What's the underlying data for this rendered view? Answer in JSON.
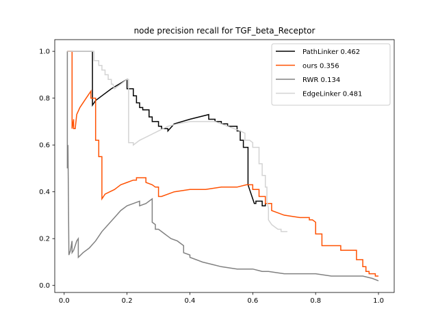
{
  "chart_data": {
    "type": "line",
    "title": "node precision recall for TGF_beta_Receptor",
    "xlabel": "",
    "ylabel": "",
    "xlim": [
      -0.03,
      1.05
    ],
    "ylim": [
      -0.03,
      1.05
    ],
    "xticks": [
      0.0,
      0.2,
      0.4,
      0.6,
      0.8,
      1.0
    ],
    "xtick_labels": [
      "0.0",
      "0.2",
      "0.4",
      "0.6",
      "0.8",
      "1.0"
    ],
    "yticks": [
      0.0,
      0.2,
      0.4,
      0.6,
      0.8,
      1.0
    ],
    "ytick_labels": [
      "0.0",
      "0.2",
      "0.4",
      "0.6",
      "0.8",
      "1.0"
    ],
    "grid": false,
    "legend_position": "top-right",
    "series": [
      {
        "name": "PathLinker 0.462",
        "color": "#000000",
        "points": [
          [
            0.01,
            1.0
          ],
          [
            0.09,
            1.0
          ],
          [
            0.09,
            0.77
          ],
          [
            0.1,
            0.79
          ],
          [
            0.12,
            0.81
          ],
          [
            0.15,
            0.84
          ],
          [
            0.2,
            0.88
          ],
          [
            0.2,
            0.84
          ],
          [
            0.22,
            0.84
          ],
          [
            0.22,
            0.81
          ],
          [
            0.23,
            0.81
          ],
          [
            0.23,
            0.78
          ],
          [
            0.24,
            0.78
          ],
          [
            0.24,
            0.76
          ],
          [
            0.25,
            0.76
          ],
          [
            0.25,
            0.75
          ],
          [
            0.27,
            0.75
          ],
          [
            0.27,
            0.72
          ],
          [
            0.28,
            0.72
          ],
          [
            0.28,
            0.7
          ],
          [
            0.3,
            0.7
          ],
          [
            0.3,
            0.68
          ],
          [
            0.31,
            0.68
          ],
          [
            0.31,
            0.67
          ],
          [
            0.33,
            0.67
          ],
          [
            0.33,
            0.66
          ],
          [
            0.35,
            0.69
          ],
          [
            0.4,
            0.71
          ],
          [
            0.46,
            0.73
          ],
          [
            0.46,
            0.71
          ],
          [
            0.48,
            0.71
          ],
          [
            0.48,
            0.7
          ],
          [
            0.5,
            0.7
          ],
          [
            0.5,
            0.69
          ],
          [
            0.52,
            0.69
          ],
          [
            0.52,
            0.68
          ],
          [
            0.55,
            0.68
          ],
          [
            0.55,
            0.66
          ],
          [
            0.56,
            0.66
          ],
          [
            0.56,
            0.62
          ],
          [
            0.57,
            0.62
          ],
          [
            0.57,
            0.59
          ],
          [
            0.585,
            0.59
          ],
          [
            0.585,
            0.43
          ],
          [
            0.59,
            0.41
          ],
          [
            0.595,
            0.39
          ],
          [
            0.6,
            0.37
          ],
          [
            0.605,
            0.35
          ],
          [
            0.61,
            0.35
          ],
          [
            0.61,
            0.36
          ],
          [
            0.62,
            0.36
          ],
          [
            0.63,
            0.36
          ],
          [
            0.63,
            0.34
          ],
          [
            0.64,
            0.34
          ],
          [
            0.64,
            0.35
          ],
          [
            0.65,
            0.35
          ]
        ]
      },
      {
        "name": "ours 0.356",
        "color": "#ff5000",
        "points": [
          [
            0.01,
            1.0
          ],
          [
            0.025,
            1.0
          ],
          [
            0.025,
            0.67
          ],
          [
            0.03,
            0.71
          ],
          [
            0.03,
            0.67
          ],
          [
            0.035,
            0.67
          ],
          [
            0.04,
            0.73
          ],
          [
            0.05,
            0.76
          ],
          [
            0.065,
            0.79
          ],
          [
            0.08,
            0.82
          ],
          [
            0.085,
            0.83
          ],
          [
            0.085,
            0.8
          ],
          [
            0.1,
            0.8
          ],
          [
            0.1,
            0.62
          ],
          [
            0.11,
            0.62
          ],
          [
            0.11,
            0.55
          ],
          [
            0.12,
            0.55
          ],
          [
            0.12,
            0.37
          ],
          [
            0.13,
            0.39
          ],
          [
            0.145,
            0.4
          ],
          [
            0.16,
            0.41
          ],
          [
            0.17,
            0.42
          ],
          [
            0.18,
            0.43
          ],
          [
            0.2,
            0.44
          ],
          [
            0.22,
            0.45
          ],
          [
            0.23,
            0.45
          ],
          [
            0.23,
            0.46
          ],
          [
            0.26,
            0.46
          ],
          [
            0.26,
            0.44
          ],
          [
            0.28,
            0.43
          ],
          [
            0.29,
            0.42
          ],
          [
            0.3,
            0.42
          ],
          [
            0.3,
            0.38
          ],
          [
            0.31,
            0.38
          ],
          [
            0.35,
            0.4
          ],
          [
            0.4,
            0.41
          ],
          [
            0.45,
            0.41
          ],
          [
            0.5,
            0.42
          ],
          [
            0.55,
            0.42
          ],
          [
            0.58,
            0.43
          ],
          [
            0.6,
            0.43
          ],
          [
            0.6,
            0.41
          ],
          [
            0.62,
            0.41
          ],
          [
            0.62,
            0.38
          ],
          [
            0.64,
            0.38
          ],
          [
            0.64,
            0.35
          ],
          [
            0.66,
            0.35
          ],
          [
            0.66,
            0.32
          ],
          [
            0.7,
            0.3
          ],
          [
            0.75,
            0.29
          ],
          [
            0.78,
            0.29
          ],
          [
            0.78,
            0.28
          ],
          [
            0.79,
            0.28
          ],
          [
            0.8,
            0.27
          ],
          [
            0.8,
            0.22
          ],
          [
            0.82,
            0.22
          ],
          [
            0.82,
            0.17
          ],
          [
            0.85,
            0.17
          ],
          [
            0.88,
            0.17
          ],
          [
            0.88,
            0.15
          ],
          [
            0.93,
            0.15
          ],
          [
            0.93,
            0.11
          ],
          [
            0.95,
            0.11
          ],
          [
            0.95,
            0.08
          ],
          [
            0.96,
            0.08
          ],
          [
            0.96,
            0.06
          ],
          [
            0.97,
            0.06
          ],
          [
            0.97,
            0.05
          ],
          [
            0.99,
            0.05
          ],
          [
            0.99,
            0.04
          ],
          [
            1.0,
            0.04
          ]
        ]
      },
      {
        "name": "RWR 0.134",
        "color": "#808080",
        "points": [
          [
            0.01,
            1.0
          ],
          [
            0.01,
            0.5
          ],
          [
            0.012,
            0.6
          ],
          [
            0.015,
            0.13
          ],
          [
            0.02,
            0.15
          ],
          [
            0.025,
            0.19
          ],
          [
            0.025,
            0.14
          ],
          [
            0.03,
            0.15
          ],
          [
            0.035,
            0.17
          ],
          [
            0.04,
            0.19
          ],
          [
            0.045,
            0.2
          ],
          [
            0.045,
            0.12
          ],
          [
            0.06,
            0.14
          ],
          [
            0.08,
            0.16
          ],
          [
            0.1,
            0.19
          ],
          [
            0.12,
            0.23
          ],
          [
            0.14,
            0.26
          ],
          [
            0.16,
            0.29
          ],
          [
            0.18,
            0.32
          ],
          [
            0.2,
            0.34
          ],
          [
            0.22,
            0.35
          ],
          [
            0.24,
            0.36
          ],
          [
            0.24,
            0.34
          ],
          [
            0.26,
            0.35
          ],
          [
            0.28,
            0.37
          ],
          [
            0.28,
            0.27
          ],
          [
            0.29,
            0.26
          ],
          [
            0.29,
            0.24
          ],
          [
            0.3,
            0.24
          ],
          [
            0.31,
            0.23
          ],
          [
            0.32,
            0.22
          ],
          [
            0.33,
            0.21
          ],
          [
            0.34,
            0.2
          ],
          [
            0.36,
            0.19
          ],
          [
            0.38,
            0.17
          ],
          [
            0.38,
            0.14
          ],
          [
            0.4,
            0.13
          ],
          [
            0.4,
            0.12
          ],
          [
            0.42,
            0.11
          ],
          [
            0.44,
            0.1
          ],
          [
            0.47,
            0.09
          ],
          [
            0.5,
            0.08
          ],
          [
            0.55,
            0.07
          ],
          [
            0.6,
            0.07
          ],
          [
            0.63,
            0.06
          ],
          [
            0.65,
            0.06
          ],
          [
            0.7,
            0.05
          ],
          [
            0.75,
            0.05
          ],
          [
            0.8,
            0.05
          ],
          [
            0.85,
            0.04
          ],
          [
            0.9,
            0.04
          ],
          [
            0.95,
            0.04
          ],
          [
            0.98,
            0.03
          ],
          [
            1.0,
            0.02
          ]
        ]
      },
      {
        "name": "EdgeLinker 0.481",
        "color": "#d3d3d3",
        "points": [
          [
            0.01,
            1.0
          ],
          [
            0.095,
            1.0
          ],
          [
            0.095,
            0.96
          ],
          [
            0.11,
            0.96
          ],
          [
            0.11,
            0.94
          ],
          [
            0.12,
            0.94
          ],
          [
            0.12,
            0.92
          ],
          [
            0.13,
            0.92
          ],
          [
            0.13,
            0.9
          ],
          [
            0.14,
            0.9
          ],
          [
            0.14,
            0.88
          ],
          [
            0.15,
            0.88
          ],
          [
            0.15,
            0.86
          ],
          [
            0.155,
            0.86
          ],
          [
            0.16,
            0.84
          ],
          [
            0.18,
            0.86
          ],
          [
            0.2,
            0.88
          ],
          [
            0.205,
            0.88
          ],
          [
            0.205,
            0.61
          ],
          [
            0.22,
            0.61
          ],
          [
            0.22,
            0.6
          ],
          [
            0.24,
            0.62
          ],
          [
            0.27,
            0.64
          ],
          [
            0.3,
            0.66
          ],
          [
            0.33,
            0.68
          ],
          [
            0.36,
            0.69
          ],
          [
            0.4,
            0.7
          ],
          [
            0.44,
            0.7
          ],
          [
            0.48,
            0.7
          ],
          [
            0.52,
            0.68
          ],
          [
            0.56,
            0.66
          ],
          [
            0.575,
            0.65
          ],
          [
            0.575,
            0.62
          ],
          [
            0.59,
            0.62
          ],
          [
            0.6,
            0.61
          ],
          [
            0.6,
            0.59
          ],
          [
            0.62,
            0.59
          ],
          [
            0.62,
            0.52
          ],
          [
            0.63,
            0.52
          ],
          [
            0.63,
            0.47
          ],
          [
            0.64,
            0.47
          ],
          [
            0.64,
            0.42
          ],
          [
            0.645,
            0.42
          ],
          [
            0.645,
            0.36
          ],
          [
            0.65,
            0.33
          ],
          [
            0.65,
            0.28
          ],
          [
            0.66,
            0.26
          ],
          [
            0.67,
            0.25
          ],
          [
            0.68,
            0.24
          ],
          [
            0.69,
            0.24
          ],
          [
            0.69,
            0.23
          ],
          [
            0.7,
            0.23
          ],
          [
            0.71,
            0.23
          ]
        ]
      }
    ]
  }
}
